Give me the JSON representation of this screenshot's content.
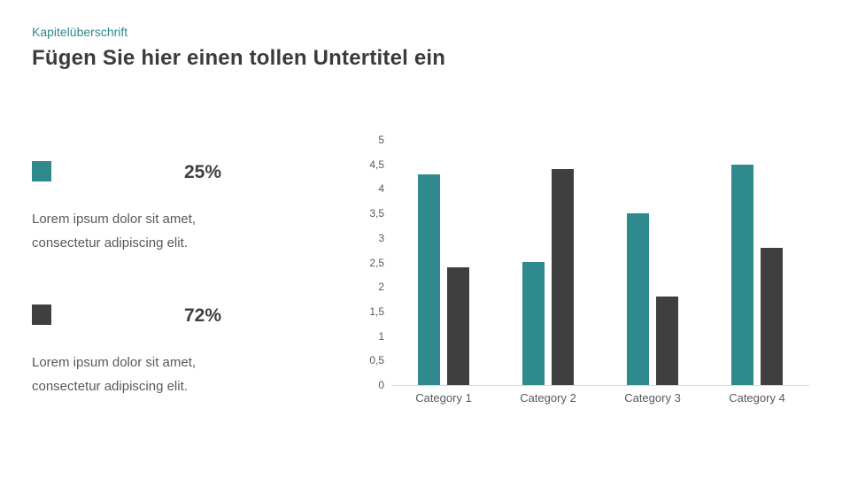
{
  "header": {
    "kicker": "Kapitelüberschrift",
    "title": "Fügen Sie hier einen tollen Untertitel ein"
  },
  "stats": [
    {
      "value": "25%",
      "description": "Lorem ipsum dolor sit amet, consectetur adipiscing elit.",
      "swatch_color": "#2F8A8D"
    },
    {
      "value": "72%",
      "description": "Lorem ipsum dolor sit amet, consectetur adipiscing elit.",
      "swatch_color": "#3F3F3F"
    }
  ],
  "chart_data": {
    "type": "bar",
    "categories": [
      "Category 1",
      "Category 2",
      "Category 3",
      "Category 4"
    ],
    "series": [
      {
        "name": "teal-series",
        "color": "#2F8A8D",
        "values": [
          4.3,
          2.5,
          3.5,
          4.5
        ]
      },
      {
        "name": "dark-series",
        "color": "#3F3F3F",
        "values": [
          2.4,
          4.4,
          1.8,
          2.8
        ]
      }
    ],
    "title": "",
    "xlabel": "",
    "ylabel": "",
    "ylim": [
      0,
      5
    ],
    "ytick_step": 0.5,
    "ytick_labels": [
      "0",
      "0,5",
      "1",
      "1,5",
      "2",
      "2,5",
      "3",
      "3,5",
      "4",
      "4,5",
      "5"
    ],
    "grid": false,
    "legend_position": "none (swatches shown in left stat blocks)"
  },
  "colors": {
    "accent_teal": "#2F8A8D",
    "dark_gray": "#3F3F3F",
    "text_gray": "#595959",
    "axis_line": "#D9D9D9",
    "background": "#FFFFFF"
  }
}
